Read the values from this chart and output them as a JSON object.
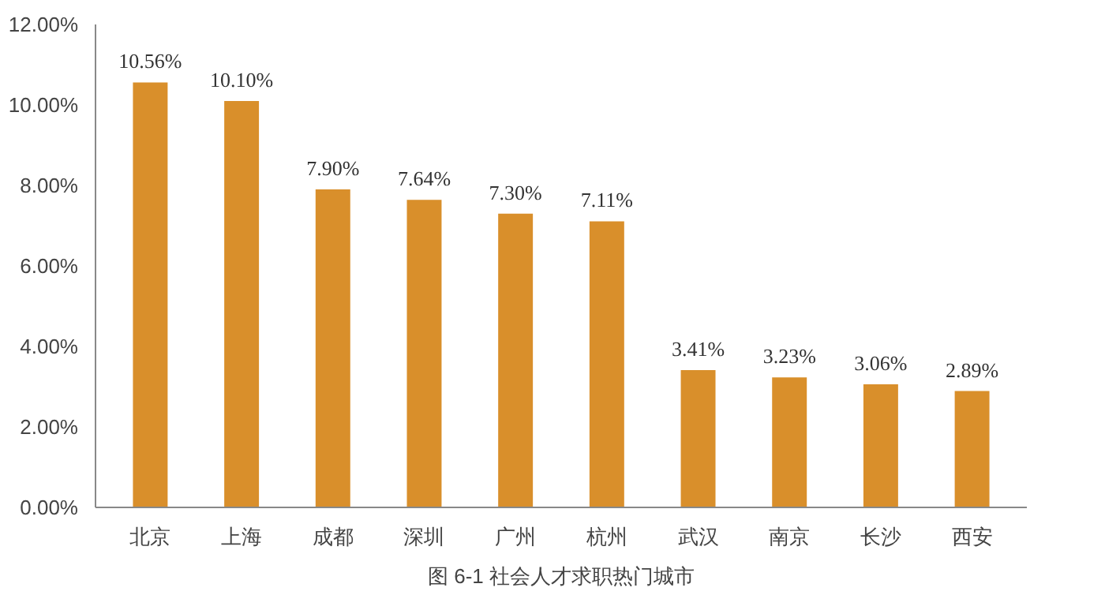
{
  "chart_data": {
    "type": "bar",
    "categories": [
      "北京",
      "上海",
      "成都",
      "深圳",
      "广州",
      "杭州",
      "武汉",
      "南京",
      "长沙",
      "西安"
    ],
    "values": [
      10.56,
      10.1,
      7.9,
      7.64,
      7.3,
      7.11,
      3.41,
      3.23,
      3.06,
      2.89
    ],
    "value_labels": [
      "10.56%",
      "10.10%",
      "7.90%",
      "7.64%",
      "7.30%",
      "7.11%",
      "3.41%",
      "3.23%",
      "3.06%",
      "2.89%"
    ],
    "color": "#d98f2b",
    "ylim": [
      0,
      12
    ],
    "yticks": [
      {
        "value": 0,
        "label": "0.00%"
      },
      {
        "value": 2,
        "label": "2.00%"
      },
      {
        "value": 4,
        "label": "4.00%"
      },
      {
        "value": 6,
        "label": "6.00%"
      },
      {
        "value": 8,
        "label": "8.00%"
      },
      {
        "value": 10,
        "label": "10.00%"
      },
      {
        "value": 12,
        "label": "12.00%"
      }
    ],
    "grid": false,
    "annotations": [
      "图 6-1 社会人才求职热门城市"
    ]
  }
}
